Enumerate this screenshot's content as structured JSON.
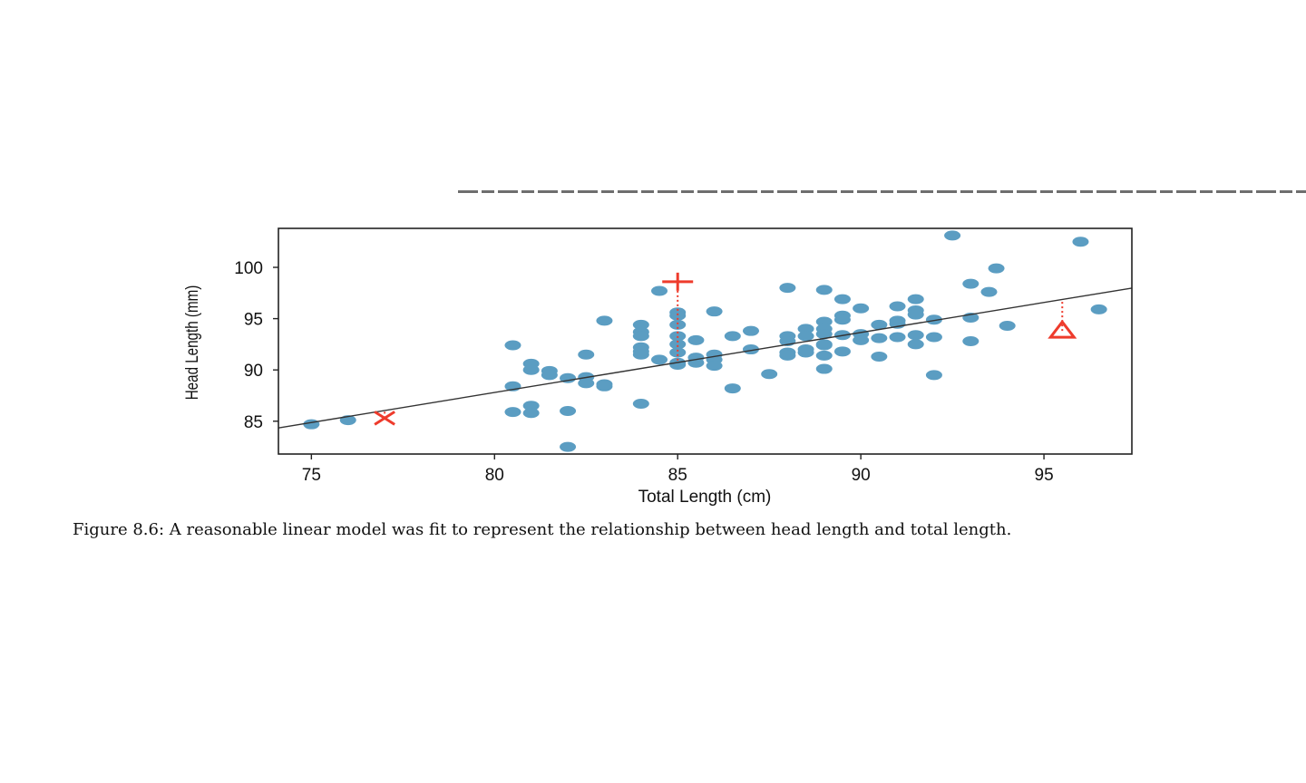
{
  "chart_data": {
    "type": "scatter",
    "xlabel": "Total Length (cm)",
    "ylabel": "Head Length (mm)",
    "xlim": [
      74.1,
      97.4
    ],
    "ylim": [
      81.8,
      103.8
    ],
    "x_ticks": [
      75,
      80,
      85,
      90,
      95
    ],
    "y_ticks": [
      85,
      90,
      95,
      100
    ],
    "x_tick_labels": [
      "75",
      "80",
      "85",
      "90",
      "95"
    ],
    "y_tick_labels": [
      "85",
      "90",
      "95",
      "100"
    ],
    "grid": false,
    "colors": {
      "points": "#5b9dc2",
      "highlight": "#ee3b2c",
      "line": "#333333"
    },
    "fit_line": {
      "intercept": 41.0,
      "slope": 0.585
    },
    "points": [
      [
        75,
        84.7
      ],
      [
        76,
        85.1
      ],
      [
        80.5,
        92.4
      ],
      [
        80.5,
        88.4
      ],
      [
        80.5,
        85.9
      ],
      [
        81,
        90.6
      ],
      [
        81,
        90.0
      ],
      [
        81,
        86.5
      ],
      [
        81,
        85.8
      ],
      [
        81.5,
        89.9
      ],
      [
        81.5,
        89.5
      ],
      [
        82,
        89.2
      ],
      [
        82,
        86.0
      ],
      [
        82,
        82.5
      ],
      [
        82.5,
        91.5
      ],
      [
        82.5,
        89.3
      ],
      [
        82.5,
        88.7
      ],
      [
        83,
        94.8
      ],
      [
        83,
        88.6
      ],
      [
        83,
        88.4
      ],
      [
        84,
        94.4
      ],
      [
        84,
        93.7
      ],
      [
        84,
        93.3
      ],
      [
        84,
        92.2
      ],
      [
        84,
        91.8
      ],
      [
        84,
        91.5
      ],
      [
        84,
        86.7
      ],
      [
        84.5,
        97.7
      ],
      [
        84.5,
        91.0
      ],
      [
        85,
        95.6
      ],
      [
        85,
        95.3
      ],
      [
        85,
        94.4
      ],
      [
        85,
        93.3
      ],
      [
        85,
        92.5
      ],
      [
        85,
        91.7
      ],
      [
        85,
        90.7
      ],
      [
        85,
        90.5
      ],
      [
        85.5,
        92.9
      ],
      [
        85.5,
        91.2
      ],
      [
        85.5,
        90.7
      ],
      [
        86,
        95.7
      ],
      [
        86,
        91.5
      ],
      [
        86,
        91.0
      ],
      [
        86,
        90.4
      ],
      [
        86.5,
        93.3
      ],
      [
        86.5,
        88.2
      ],
      [
        87,
        93.8
      ],
      [
        87,
        92.0
      ],
      [
        87.5,
        89.6
      ],
      [
        88,
        98.0
      ],
      [
        88,
        93.3
      ],
      [
        88,
        92.8
      ],
      [
        88,
        91.7
      ],
      [
        88,
        91.4
      ],
      [
        88.5,
        94.0
      ],
      [
        88.5,
        93.3
      ],
      [
        88.5,
        92.0
      ],
      [
        88.5,
        91.7
      ],
      [
        89,
        97.8
      ],
      [
        89,
        94.7
      ],
      [
        89,
        94.0
      ],
      [
        89,
        93.5
      ],
      [
        89,
        92.5
      ],
      [
        89,
        92.4
      ],
      [
        89,
        91.4
      ],
      [
        89,
        90.1
      ],
      [
        89.5,
        96.9
      ],
      [
        89.5,
        95.3
      ],
      [
        89.5,
        94.9
      ],
      [
        89.5,
        93.4
      ],
      [
        89.5,
        91.8
      ],
      [
        90,
        96.0
      ],
      [
        90,
        93.5
      ],
      [
        90,
        92.9
      ],
      [
        90.5,
        94.4
      ],
      [
        90.5,
        93.1
      ],
      [
        90.5,
        91.3
      ],
      [
        91,
        96.2
      ],
      [
        91,
        94.8
      ],
      [
        91,
        94.5
      ],
      [
        91,
        93.2
      ],
      [
        91.5,
        96.9
      ],
      [
        91.5,
        95.8
      ],
      [
        91.5,
        95.4
      ],
      [
        91.5,
        93.4
      ],
      [
        91.5,
        92.5
      ],
      [
        92,
        94.9
      ],
      [
        92,
        93.2
      ],
      [
        92,
        89.5
      ],
      [
        92.5,
        103.1
      ],
      [
        93,
        98.4
      ],
      [
        93,
        95.1
      ],
      [
        93,
        92.8
      ],
      [
        93.5,
        97.6
      ],
      [
        93.7,
        99.9
      ],
      [
        94,
        94.3
      ],
      [
        96,
        102.5
      ],
      [
        96.5,
        95.9
      ]
    ],
    "highlighted_points": [
      {
        "marker": "x",
        "x": 77,
        "y": 85.3
      },
      {
        "marker": "plus",
        "x": 85,
        "y": 98.6
      },
      {
        "marker": "triangle",
        "x": 95.5,
        "y": 93.8
      }
    ]
  },
  "caption": {
    "text": "Figure 8.6: A reasonable linear model was fit to represent the relationship between head length and total length."
  }
}
